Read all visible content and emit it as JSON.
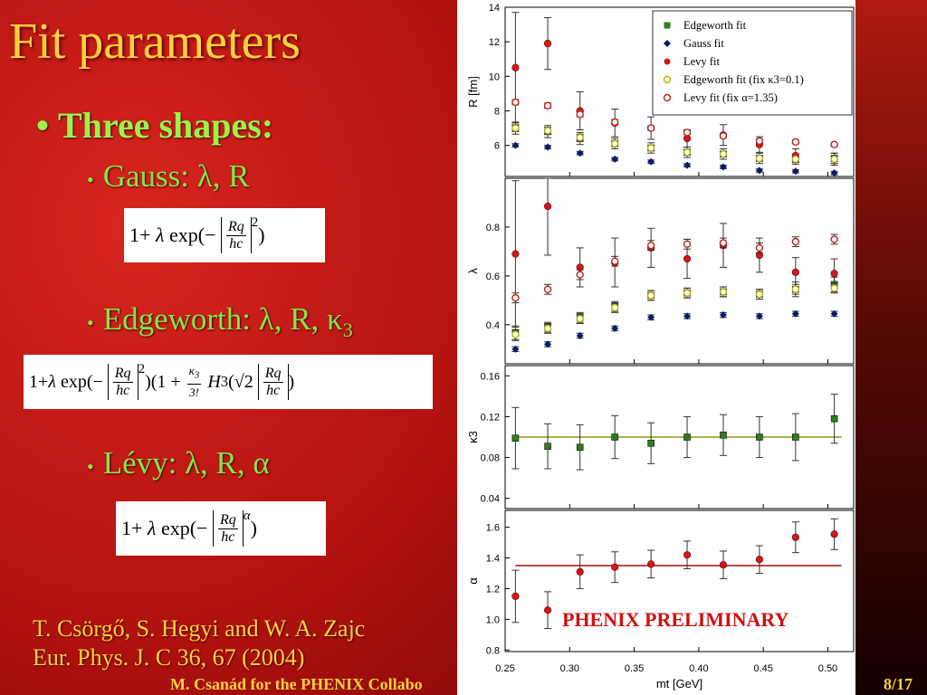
{
  "slide": {
    "title": "Fit parameters",
    "bullet_main": "Three shapes:",
    "bullet_gauss": "Gauss: λ, R",
    "bullet_edgeworth_main": "Edgeworth: λ, R, κ",
    "bullet_edgeworth_sub": "3",
    "bullet_levy": "Lévy: λ, R, α",
    "formula_prefix": "1+",
    "reference_line1": "T. Csörgő, S. Hegyi and W. A. Zajc",
    "reference_line2": "Eur. Phys. J. C 36, 67 (2004)",
    "footer": "M. Csanád for the PHENIX Collabo",
    "page": "8/17",
    "watermark": "PHENIX PRELIMINARY"
  },
  "colors": {
    "title": "#ffd23c",
    "bullet": "#9df24a",
    "edgeworth": "#2e7d1f",
    "gauss": "#0a1a6e",
    "levy": "#d01818",
    "edgeworth_fix": "#b5b500",
    "fit_line_kappa": "#8a9a10",
    "fit_line_alpha": "#a01010"
  },
  "chart_data": [
    {
      "type": "scatter",
      "ylabel": "R [fm]",
      "ylim": [
        4.2,
        14
      ],
      "yticks": [
        6,
        8,
        10,
        12,
        14
      ],
      "legend_position": "top-right",
      "x": [
        0.258,
        0.283,
        0.308,
        0.335,
        0.363,
        0.391,
        0.419,
        0.447,
        0.475,
        0.505
      ],
      "series": [
        {
          "name": "Edgeworth fit",
          "marker": "square",
          "color": "#2e7d1f",
          "values": [
            7.0,
            6.8,
            6.4,
            6.1,
            5.85,
            5.6,
            5.5,
            5.25,
            5.2,
            5.25
          ],
          "err": [
            0.35,
            0.35,
            0.35,
            0.3,
            0.3,
            0.3,
            0.3,
            0.3,
            0.3,
            0.3
          ]
        },
        {
          "name": "Gauss fit",
          "marker": "diamond",
          "color": "#0a1a6e",
          "values": [
            6.0,
            5.9,
            5.55,
            5.2,
            5.05,
            4.85,
            4.75,
            4.55,
            4.5,
            4.4
          ],
          "err": [
            0.1,
            0.1,
            0.1,
            0.1,
            0.1,
            0.1,
            0.1,
            0.1,
            0.1,
            0.1
          ]
        },
        {
          "name": "Levy fit",
          "marker": "circle",
          "color": "#d01818",
          "values": [
            10.5,
            11.9,
            8.0,
            7.3,
            7.0,
            6.4,
            6.6,
            6.05,
            5.4,
            5.2
          ],
          "err": [
            3.2,
            1.5,
            1.1,
            0.8,
            0.65,
            0.5,
            0.6,
            0.45,
            0.4,
            0.35
          ]
        },
        {
          "name": "Edgeworth fit (fix κ3=0.1)",
          "marker": "open-circle",
          "color": "#b5b500",
          "values": [
            7.0,
            6.85,
            6.45,
            6.1,
            5.85,
            5.6,
            5.5,
            5.25,
            5.2,
            5.2
          ],
          "err": [
            0.2,
            0.2,
            0.2,
            0.15,
            0.15,
            0.15,
            0.15,
            0.15,
            0.15,
            0.15
          ]
        },
        {
          "name": "Levy fit (fix α=1.35)",
          "marker": "open-circle",
          "color": "#c02020",
          "values": [
            8.5,
            8.3,
            7.8,
            7.35,
            7.0,
            6.75,
            6.55,
            6.25,
            6.2,
            6.05
          ],
          "err": [
            0.15,
            0.15,
            0.15,
            0.15,
            0.12,
            0.12,
            0.12,
            0.12,
            0.1,
            0.1
          ]
        }
      ]
    },
    {
      "type": "scatter",
      "ylabel": "λ",
      "ylim": [
        0.24,
        1.0
      ],
      "yticks": [
        0.4,
        0.6,
        0.8
      ],
      "x": [
        0.258,
        0.283,
        0.308,
        0.335,
        0.363,
        0.391,
        0.419,
        0.447,
        0.475,
        0.505
      ],
      "series": [
        {
          "name": "Edgeworth fit",
          "marker": "square",
          "color": "#2e7d1f",
          "values": [
            0.365,
            0.39,
            0.43,
            0.475,
            0.52,
            0.53,
            0.535,
            0.525,
            0.545,
            0.565
          ],
          "err": [
            0.03,
            0.02,
            0.02,
            0.02,
            0.02,
            0.02,
            0.02,
            0.02,
            0.03,
            0.03
          ]
        },
        {
          "name": "Gauss fit",
          "marker": "diamond",
          "color": "#0a1a6e",
          "values": [
            0.3,
            0.32,
            0.355,
            0.385,
            0.43,
            0.435,
            0.44,
            0.435,
            0.445,
            0.445
          ],
          "err": [
            0.01,
            0.01,
            0.01,
            0.01,
            0.01,
            0.01,
            0.01,
            0.01,
            0.01,
            0.01
          ]
        },
        {
          "name": "Levy fit",
          "marker": "circle",
          "color": "#d01818",
          "values": [
            0.69,
            0.885,
            0.635,
            0.655,
            0.715,
            0.67,
            0.725,
            0.685,
            0.615,
            0.61
          ],
          "err": [
            0.3,
            0.2,
            0.08,
            0.1,
            0.08,
            0.08,
            0.09,
            0.07,
            0.06,
            0.06
          ]
        },
        {
          "name": "Edgeworth fit (fix κ3=0.1)",
          "marker": "open-circle",
          "color": "#b5b500",
          "values": [
            0.36,
            0.385,
            0.425,
            0.47,
            0.52,
            0.53,
            0.535,
            0.525,
            0.545,
            0.55
          ],
          "err": [
            0.02,
            0.02,
            0.02,
            0.02,
            0.02,
            0.02,
            0.02,
            0.02,
            0.02,
            0.02
          ]
        },
        {
          "name": "Levy fit (fix α=1.35)",
          "marker": "open-circle",
          "color": "#c02020",
          "values": [
            0.51,
            0.545,
            0.605,
            0.66,
            0.725,
            0.73,
            0.735,
            0.715,
            0.74,
            0.75
          ],
          "err": [
            0.02,
            0.02,
            0.02,
            0.02,
            0.02,
            0.02,
            0.02,
            0.02,
            0.02,
            0.02
          ]
        }
      ]
    },
    {
      "type": "scatter",
      "ylabel": "κ3",
      "ylim": [
        0.03,
        0.17
      ],
      "yticks": [
        0.04,
        0.08,
        0.12,
        0.16
      ],
      "x": [
        0.258,
        0.283,
        0.308,
        0.335,
        0.363,
        0.391,
        0.419,
        0.447,
        0.475,
        0.505
      ],
      "fit_line": 0.1,
      "series": [
        {
          "name": "Edgeworth fit",
          "marker": "square",
          "color": "#2e7d1f",
          "values": [
            0.099,
            0.091,
            0.09,
            0.1,
            0.094,
            0.1,
            0.102,
            0.1,
            0.1,
            0.118
          ],
          "err": [
            0.03,
            0.022,
            0.022,
            0.021,
            0.02,
            0.02,
            0.02,
            0.02,
            0.023,
            0.024
          ]
        }
      ]
    },
    {
      "type": "scatter",
      "ylabel": "α",
      "ylim": [
        0.79,
        1.71
      ],
      "yticks": [
        0.8,
        1.0,
        1.2,
        1.4,
        1.6
      ],
      "xlabel": "mt [GeV]",
      "xlim": [
        0.25,
        0.52
      ],
      "xticks": [
        0.25,
        0.3,
        0.35,
        0.4,
        0.45,
        0.5
      ],
      "x": [
        0.258,
        0.283,
        0.308,
        0.335,
        0.363,
        0.391,
        0.419,
        0.447,
        0.475,
        0.505
      ],
      "fit_line": 1.35,
      "series": [
        {
          "name": "Levy fit",
          "marker": "circle",
          "color": "#d01818",
          "values": [
            1.15,
            1.06,
            1.31,
            1.34,
            1.36,
            1.42,
            1.355,
            1.39,
            1.535,
            1.555
          ],
          "err": [
            0.17,
            0.12,
            0.11,
            0.1,
            0.09,
            0.09,
            0.09,
            0.09,
            0.1,
            0.1
          ]
        }
      ]
    }
  ]
}
